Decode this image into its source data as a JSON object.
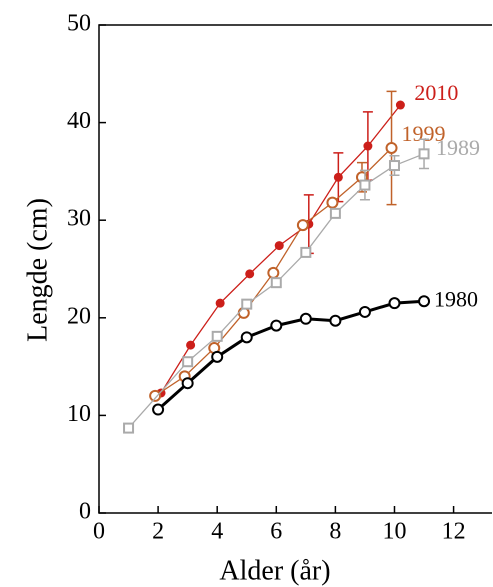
{
  "chart_data": {
    "type": "line",
    "x_label": "Alder (år)",
    "y_label": "Lengde (cm)",
    "xlim": [
      0,
      13.3
    ],
    "ylim": [
      0,
      50
    ],
    "xticks": [
      0,
      2,
      4,
      6,
      8,
      10,
      12
    ],
    "yticks": [
      0,
      10,
      20,
      30,
      40,
      50
    ],
    "series": [
      {
        "name": "2010",
        "color": "#cc1f1a",
        "marker": "filled-circle",
        "x": [
          2.1,
          3.1,
          4.1,
          5.1,
          6.1,
          7.1,
          8.1,
          9.1,
          10.2
        ],
        "values": [
          12.3,
          17.2,
          21.5,
          24.5,
          27.4,
          29.6,
          34.4,
          37.6,
          41.8
        ],
        "errors": [
          null,
          null,
          null,
          null,
          null,
          3,
          2.5,
          3.5,
          null
        ]
      },
      {
        "name": "1999",
        "color": "#c0622a",
        "marker": "open-circle",
        "x": [
          1.9,
          2.9,
          3.9,
          4.9,
          5.9,
          6.9,
          7.9,
          8.9,
          9.9
        ],
        "values": [
          12.0,
          14.0,
          16.9,
          20.5,
          24.6,
          29.5,
          31.8,
          34.4,
          37.4
        ],
        "errors": [
          null,
          null,
          null,
          null,
          null,
          null,
          null,
          1.5,
          5.8
        ]
      },
      {
        "name": "1989",
        "color": "#aaaaaa",
        "marker": "open-square",
        "x": [
          1,
          3,
          4,
          5,
          6,
          7,
          8,
          9,
          10,
          11
        ],
        "values": [
          8.7,
          15.5,
          18.1,
          21.4,
          23.6,
          26.7,
          30.7,
          33.6,
          35.6,
          36.8
        ],
        "errors": [
          null,
          null,
          null,
          null,
          null,
          null,
          null,
          1.5,
          1,
          1.5
        ]
      },
      {
        "name": "1980",
        "color": "#000000",
        "marker": "open-circle",
        "x": [
          2,
          3,
          4,
          5,
          6,
          7,
          8,
          9,
          10,
          11
        ],
        "values": [
          10.6,
          13.3,
          16.0,
          18.0,
          19.2,
          19.9,
          19.7,
          20.6,
          21.5,
          21.7
        ],
        "errors": [
          null,
          null,
          null,
          null,
          null,
          null,
          null,
          null,
          null,
          null
        ]
      }
    ]
  }
}
